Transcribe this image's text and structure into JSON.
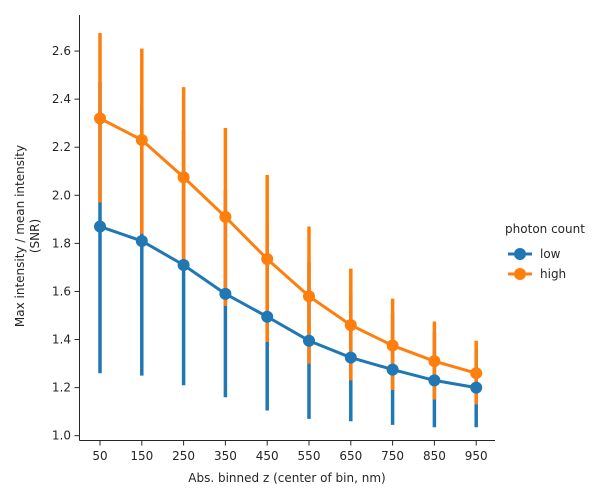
{
  "chart_data": {
    "type": "line",
    "xlabel": "Abs. binned z (center of bin, nm)",
    "ylabel_line1": "Max intensity / mean intensity",
    "ylabel_line2": "(SNR)",
    "categories": [
      "50",
      "150",
      "250",
      "350",
      "450",
      "550",
      "650",
      "750",
      "850",
      "950"
    ],
    "yticks": [
      "1.0",
      "1.2",
      "1.4",
      "1.6",
      "1.8",
      "2.0",
      "2.2",
      "2.4",
      "2.6"
    ],
    "ylim": [
      0.98,
      2.75
    ],
    "grid": false,
    "legend": {
      "title": "photon count",
      "placement": "center-right"
    },
    "series": [
      {
        "name": "low",
        "color": "#1f77b4",
        "values": [
          1.87,
          1.81,
          1.71,
          1.59,
          1.495,
          1.395,
          1.325,
          1.275,
          1.23,
          1.2
        ],
        "ci_low": [
          1.26,
          1.25,
          1.21,
          1.16,
          1.105,
          1.07,
          1.06,
          1.045,
          1.035,
          1.035
        ],
        "ci_high": [
          2.47,
          2.37,
          2.27,
          2.02,
          1.89,
          1.72,
          1.59,
          1.51,
          1.43,
          1.36
        ]
      },
      {
        "name": "high",
        "color": "#ff7f0e",
        "values": [
          2.32,
          2.23,
          2.075,
          1.91,
          1.735,
          1.58,
          1.46,
          1.375,
          1.31,
          1.26
        ],
        "ci_low": [
          1.97,
          1.84,
          1.73,
          1.54,
          1.39,
          1.3,
          1.23,
          1.19,
          1.15,
          1.13
        ],
        "ci_high": [
          2.675,
          2.61,
          2.45,
          2.28,
          2.085,
          1.87,
          1.695,
          1.57,
          1.475,
          1.395
        ]
      }
    ]
  }
}
